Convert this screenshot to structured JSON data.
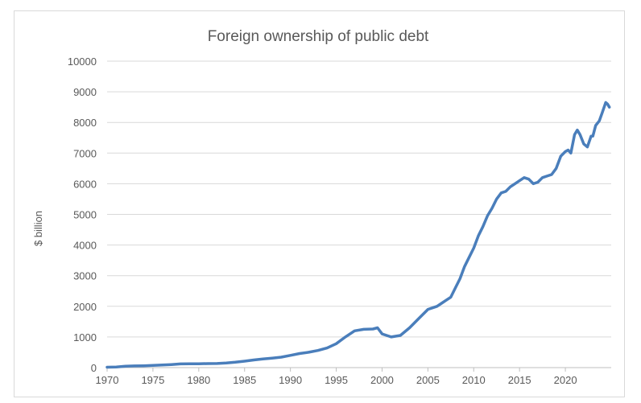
{
  "chart_data": {
    "type": "line",
    "title": "Foreign ownership of public debt",
    "xlabel": "",
    "ylabel": "$ billion",
    "xlim": [
      1970,
      2025
    ],
    "ylim": [
      0,
      10000
    ],
    "x_ticks": [
      "1970",
      "1975",
      "1980",
      "1985",
      "1990",
      "1995",
      "2000",
      "2005",
      "2010",
      "2015",
      "2020"
    ],
    "y_ticks": [
      "0",
      "1000",
      "2000",
      "3000",
      "4000",
      "5000",
      "6000",
      "7000",
      "8000",
      "9000",
      "10000"
    ],
    "grid": "horizontal",
    "legend": "none",
    "series": [
      {
        "color": "#4a7ebb",
        "x": [
          1970,
          1971,
          1972,
          1973,
          1974,
          1975,
          1976,
          1977,
          1978,
          1979,
          1980,
          1981,
          1982,
          1983,
          1984,
          1985,
          1986,
          1987,
          1988,
          1989,
          1990,
          1991,
          1992,
          1993,
          1994,
          1995,
          1996,
          1997,
          1998,
          1999,
          1999.5,
          2000,
          2001,
          2002,
          2003,
          2004,
          2005,
          2005.5,
          2006,
          2006.5,
          2007,
          2007.5,
          2008,
          2008.5,
          2009,
          2009.5,
          2010,
          2010.5,
          2011,
          2011.5,
          2012,
          2012.5,
          2013,
          2013.5,
          2014,
          2014.5,
          2015,
          2015.5,
          2016,
          2016.5,
          2017,
          2017.5,
          2018,
          2018.5,
          2019,
          2019.5,
          2020,
          2020.3,
          2020.6,
          2021,
          2021.3,
          2021.6,
          2022,
          2022.4,
          2022.8,
          2023,
          2023.3,
          2023.7,
          2024,
          2024.4,
          2024.6,
          2024.8
        ],
        "values": [
          12,
          20,
          45,
          55,
          60,
          70,
          85,
          100,
          120,
          125,
          125,
          130,
          135,
          150,
          175,
          210,
          250,
          280,
          310,
          340,
          400,
          460,
          500,
          560,
          640,
          780,
          1000,
          1200,
          1250,
          1260,
          1300,
          1100,
          1000,
          1050,
          1300,
          1600,
          1900,
          1950,
          2000,
          2100,
          2200,
          2300,
          2600,
          2900,
          3300,
          3600,
          3900,
          4300,
          4600,
          4950,
          5200,
          5500,
          5700,
          5750,
          5900,
          6000,
          6100,
          6200,
          6150,
          6000,
          6050,
          6200,
          6250,
          6300,
          6500,
          6900,
          7050,
          7100,
          7000,
          7600,
          7750,
          7600,
          7300,
          7200,
          7550,
          7550,
          7900,
          8050,
          8300,
          8650,
          8600,
          8500
        ]
      }
    ]
  }
}
